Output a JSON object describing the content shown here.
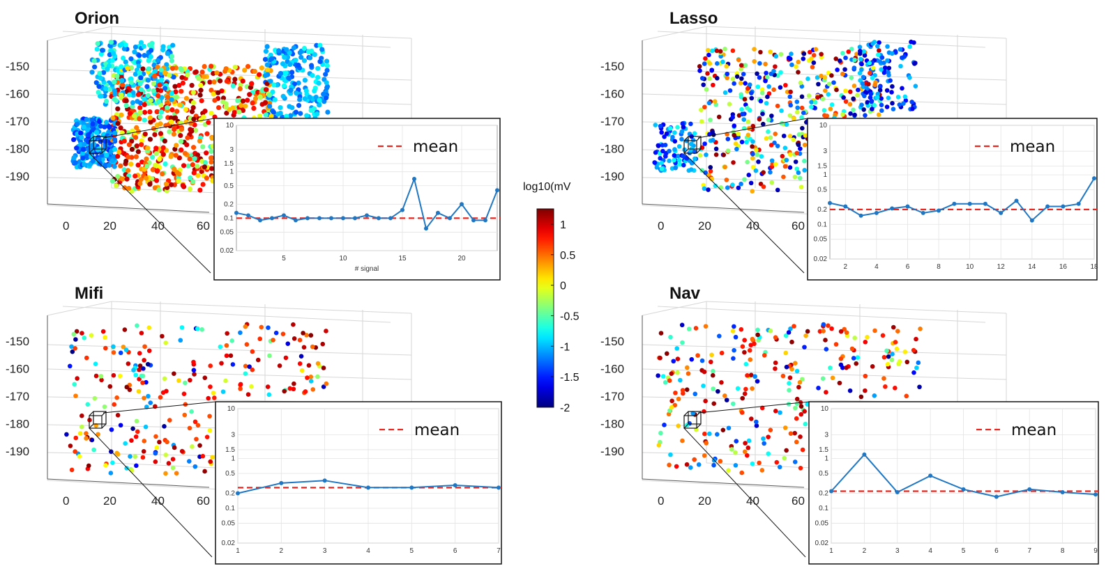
{
  "colorbar": {
    "title": "log10(mV",
    "ticks": [
      "1",
      "0.5",
      "0",
      "-0.5",
      "-1",
      "-1.5",
      "-2"
    ],
    "tick_values": [
      1,
      0.5,
      0,
      -0.5,
      -1,
      -1.5,
      -2
    ],
    "range": [
      -2,
      1.25
    ],
    "colormap": "jet"
  },
  "legend_label": "mean",
  "colors": {
    "series": "#1f77c4",
    "mean": "#e8251f",
    "frame": "#111111"
  },
  "chart_data": [
    {
      "title": "Orion",
      "type": "scatter",
      "yticks": [
        "-150",
        "-160",
        "-170",
        "-180",
        "-190"
      ],
      "xticks": [
        "0",
        "20",
        "40",
        "60"
      ],
      "density": "dense",
      "inset": {
        "type": "line",
        "xlabel": "# signal",
        "xlim": [
          1,
          23
        ],
        "ylim": [
          0.02,
          10
        ],
        "yscale": "log",
        "yticks": [
          "10",
          "3",
          "1.5",
          "1",
          "0.5",
          "0.2",
          "0.1",
          "0.05",
          "0.02"
        ],
        "xticks": [
          "5",
          "10",
          "15",
          "20"
        ],
        "x": [
          1,
          2,
          3,
          4,
          5,
          6,
          7,
          8,
          9,
          10,
          11,
          12,
          13,
          14,
          15,
          16,
          17,
          18,
          19,
          20,
          21,
          22,
          23
        ],
        "values": [
          0.13,
          0.115,
          0.09,
          0.1,
          0.115,
          0.09,
          0.1,
          0.1,
          0.1,
          0.1,
          0.1,
          0.115,
          0.1,
          0.1,
          0.15,
          0.7,
          0.06,
          0.13,
          0.1,
          0.2,
          0.09,
          0.09,
          0.4
        ],
        "mean": 0.1
      }
    },
    {
      "title": "Lasso",
      "type": "scatter",
      "yticks": [
        "-150",
        "-160",
        "-170",
        "-180",
        "-190"
      ],
      "xticks": [
        "0",
        "20",
        "40",
        "60"
      ],
      "density": "medium",
      "inset": {
        "type": "line",
        "xlabel": "",
        "xlim": [
          1,
          18
        ],
        "ylim": [
          0.02,
          10
        ],
        "yscale": "log",
        "yticks": [
          "10",
          "3",
          "1.5",
          "1",
          "0.5",
          "0.2",
          "0.1",
          "0.05",
          "0.02"
        ],
        "xticks": [
          "2",
          "4",
          "6",
          "8",
          "10",
          "12",
          "14",
          "16",
          "18"
        ],
        "x": [
          1,
          2,
          3,
          4,
          5,
          6,
          7,
          8,
          9,
          10,
          11,
          12,
          13,
          14,
          15,
          16,
          17,
          18
        ],
        "values": [
          0.27,
          0.23,
          0.15,
          0.17,
          0.21,
          0.23,
          0.17,
          0.19,
          0.26,
          0.26,
          0.26,
          0.17,
          0.3,
          0.12,
          0.23,
          0.23,
          0.26,
          0.85
        ],
        "mean": 0.2
      }
    },
    {
      "title": "Mifi",
      "type": "scatter",
      "yticks": [
        "-150",
        "-160",
        "-170",
        "-180",
        "-190"
      ],
      "xticks": [
        "0",
        "20",
        "40",
        "60"
      ],
      "density": "sparse",
      "inset": {
        "type": "line",
        "xlabel": "",
        "xlim": [
          1,
          7
        ],
        "ylim": [
          0.02,
          10
        ],
        "yscale": "log",
        "yticks": [
          "10",
          "3",
          "1.5",
          "1",
          "0.5",
          "0.2",
          "0.1",
          "0.05",
          "0.02"
        ],
        "xticks": [
          "1",
          "2",
          "3",
          "4",
          "5",
          "6",
          "7"
        ],
        "x": [
          1,
          2,
          3,
          4,
          5,
          6,
          7
        ],
        "values": [
          0.2,
          0.32,
          0.36,
          0.26,
          0.26,
          0.29,
          0.26
        ],
        "mean": 0.26
      }
    },
    {
      "title": "Nav",
      "type": "scatter",
      "yticks": [
        "-150",
        "-160",
        "-170",
        "-180",
        "-190"
      ],
      "xticks": [
        "0",
        "20",
        "40",
        "60"
      ],
      "density": "sparse",
      "inset": {
        "type": "line",
        "xlabel": "",
        "xlim": [
          1,
          9
        ],
        "ylim": [
          0.02,
          10
        ],
        "yscale": "log",
        "yticks": [
          "10",
          "3",
          "1.5",
          "1",
          "0.5",
          "0.2",
          "0.1",
          "0.05",
          "0.02"
        ],
        "xticks": [
          "1",
          "2",
          "3",
          "4",
          "5",
          "6",
          "7",
          "8",
          "9"
        ],
        "x": [
          1,
          2,
          3,
          4,
          5,
          6,
          7,
          8,
          9
        ],
        "values": [
          0.22,
          1.2,
          0.21,
          0.45,
          0.24,
          0.17,
          0.24,
          0.21,
          0.19
        ],
        "mean": 0.22
      }
    }
  ]
}
